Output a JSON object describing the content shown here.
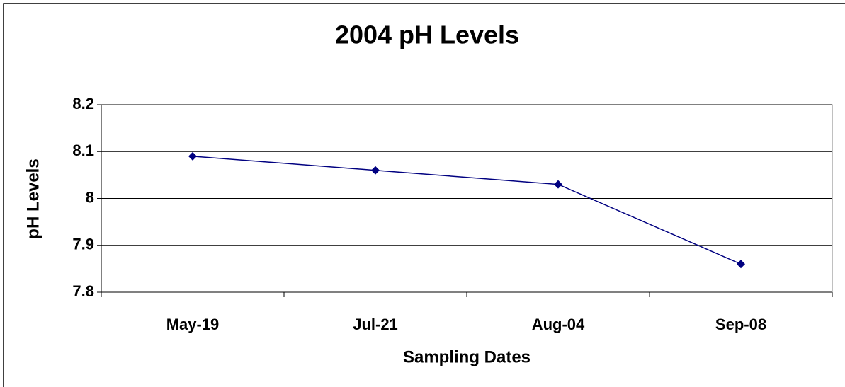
{
  "chart_data": {
    "type": "line",
    "title": "2004 pH Levels",
    "x_label": "Sampling Dates",
    "y_label": "pH Levels",
    "categories": [
      "May-19",
      "Jul-21",
      "Aug-04",
      "Sep-08"
    ],
    "series": [
      {
        "name": "pH Levels",
        "color": "#000080",
        "values": [
          8.09,
          8.06,
          8.03,
          7.86
        ]
      }
    ],
    "ylim": [
      7.8,
      8.2
    ],
    "yticks": [
      7.8,
      7.9,
      8,
      8.1,
      8.2
    ],
    "grid": true
  }
}
